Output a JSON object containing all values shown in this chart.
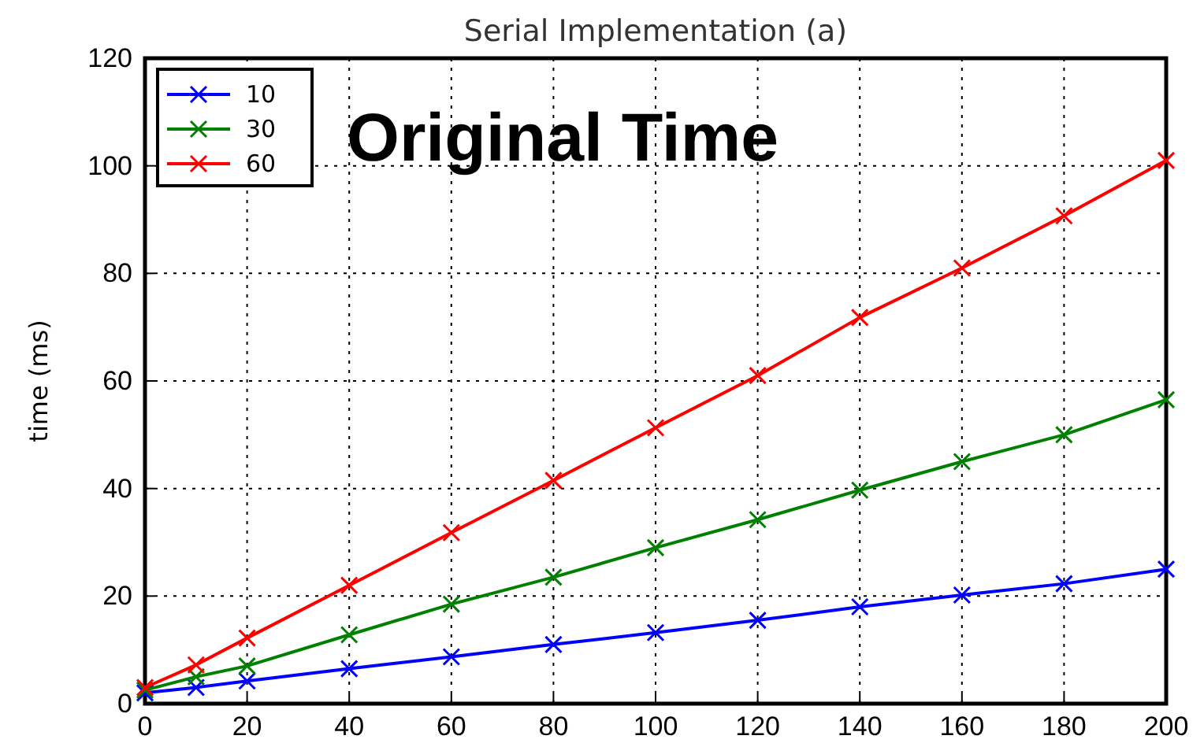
{
  "chart_data": {
    "type": "line",
    "title": "Serial Implementation (a)",
    "ylabel": "time (ms)",
    "annotations": [
      "Original Time"
    ],
    "x": [
      0,
      10,
      20,
      40,
      60,
      80,
      100,
      120,
      140,
      160,
      180,
      200
    ],
    "series": [
      {
        "name": "10",
        "color": "#0000ff",
        "values": [
          2,
          3,
          4.2,
          6.5,
          8.7,
          11,
          13.2,
          15.5,
          18,
          20.2,
          22.3,
          25
        ]
      },
      {
        "name": "30",
        "color": "#008000",
        "values": [
          2.5,
          5,
          7,
          12.8,
          18.5,
          23.5,
          29,
          34.2,
          39.7,
          45,
          50,
          56.5
        ]
      },
      {
        "name": "60",
        "color": "#ff0000",
        "values": [
          3,
          7.2,
          12.2,
          22,
          31.8,
          41.5,
          51.3,
          61,
          71.8,
          81,
          90.7,
          101
        ]
      }
    ],
    "xlim": [
      0,
      200
    ],
    "xticks": [
      0,
      20,
      40,
      60,
      80,
      100,
      120,
      140,
      160,
      180,
      200
    ],
    "ylim": [
      0,
      120
    ],
    "yticks": [
      0,
      20,
      40,
      60,
      80,
      100,
      120
    ],
    "grid": true,
    "legend": "top left",
    "marker": "cross",
    "line_style": "solid"
  }
}
